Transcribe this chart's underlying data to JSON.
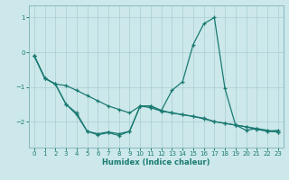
{
  "xlabel": "Humidex (Indice chaleur)",
  "background_color": "#cce8ea",
  "grid_color": "#aacdd2",
  "line_color": "#1a7a72",
  "x": [
    0,
    1,
    2,
    3,
    4,
    5,
    6,
    7,
    8,
    9,
    10,
    11,
    12,
    13,
    14,
    15,
    16,
    17,
    18,
    19,
    20,
    21,
    22,
    23
  ],
  "line1": [
    -0.1,
    -0.75,
    -0.92,
    -1.5,
    -1.75,
    -2.28,
    -2.35,
    -2.3,
    -2.35,
    -2.28,
    -1.55,
    -1.55,
    -1.68,
    -1.1,
    -0.85,
    0.22,
    0.82,
    1.0,
    -1.05,
    -2.1,
    -2.25,
    -2.2,
    -2.28,
    -2.25
  ],
  "line2": [
    -0.1,
    -0.75,
    -0.92,
    -0.96,
    -1.1,
    -1.25,
    -1.4,
    -1.55,
    -1.65,
    -1.75,
    -1.55,
    -1.6,
    -1.7,
    -1.75,
    -1.8,
    -1.85,
    -1.9,
    -2.0,
    -2.05,
    -2.1,
    -2.15,
    -2.2,
    -2.25,
    -2.3
  ],
  "line3": [
    -0.1,
    -0.75,
    -0.92,
    -1.5,
    -1.8,
    -2.28,
    -2.38,
    -2.32,
    -2.4,
    -2.28,
    -1.55,
    -1.55,
    -1.68,
    -1.75,
    -1.8,
    -1.85,
    -1.92,
    -2.0,
    -2.05,
    -2.1,
    -2.15,
    -2.22,
    -2.28,
    -2.3
  ],
  "ylim": [
    -2.75,
    1.35
  ],
  "xlim": [
    -0.5,
    23.5
  ],
  "yticks": [
    -2,
    -1,
    0,
    1
  ],
  "xticks": [
    0,
    1,
    2,
    3,
    4,
    5,
    6,
    7,
    8,
    9,
    10,
    11,
    12,
    13,
    14,
    15,
    16,
    17,
    18,
    19,
    20,
    21,
    22,
    23
  ]
}
